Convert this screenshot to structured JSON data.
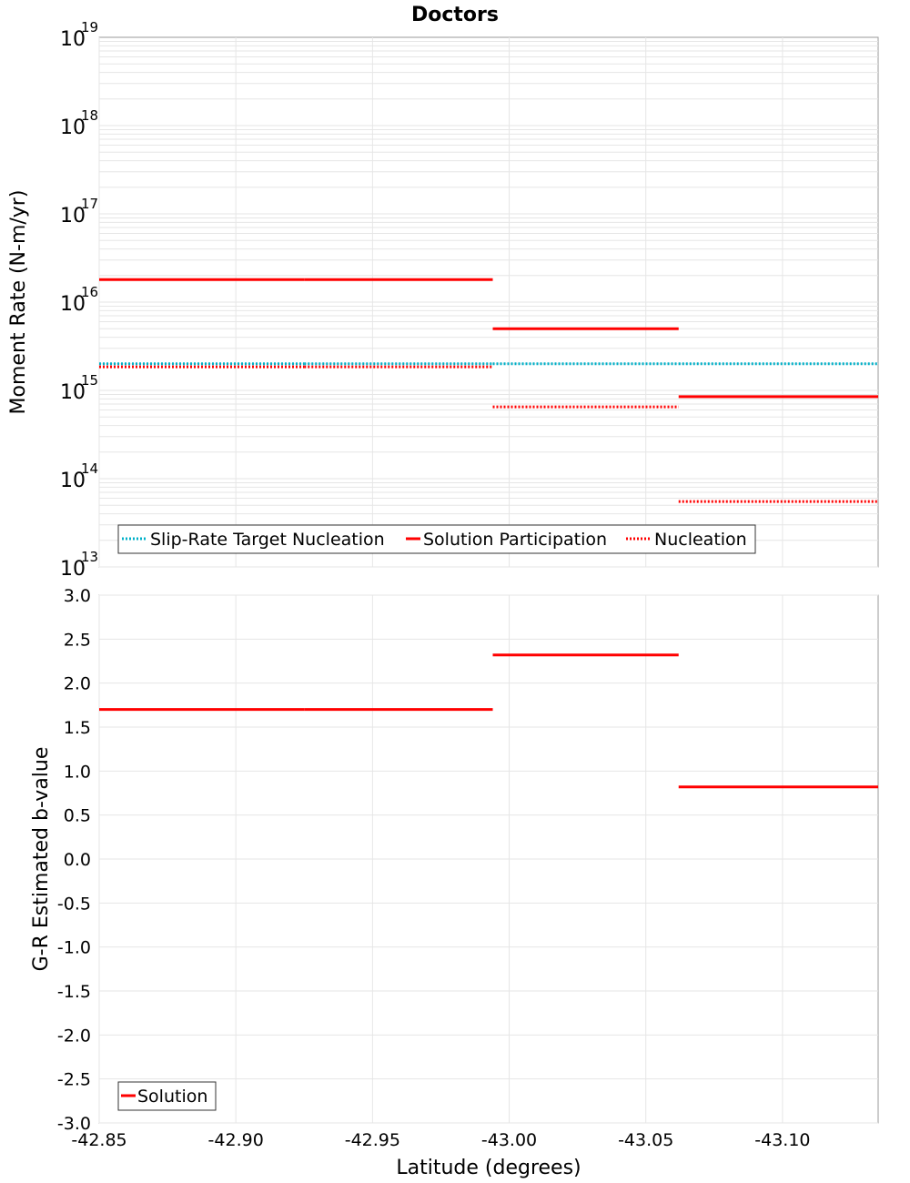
{
  "chart_data": [
    {
      "type": "line",
      "title": "Doctors",
      "xlabel": "Latitude (degrees)",
      "ylabel": "Moment Rate (N-m/yr)",
      "yscale": "log",
      "ylim": [
        10000000000000.0,
        1e+19
      ],
      "xlim": [
        -42.85,
        -43.135
      ],
      "x_ticks": [
        -42.85,
        -42.9,
        -42.95,
        -43.0,
        -43.05,
        -43.1
      ],
      "x_tick_labels": [
        "-42.85",
        "-42.90",
        "-42.95",
        "-43.00",
        "-43.05",
        "-43.10"
      ],
      "y_ticks": [
        {
          "base": "10",
          "exp": "13",
          "value": 10000000000000.0
        },
        {
          "base": "10",
          "exp": "14",
          "value": 100000000000000.0
        },
        {
          "base": "10",
          "exp": "15",
          "value": 1000000000000000.0
        },
        {
          "base": "10",
          "exp": "16",
          "value": 1e+16
        },
        {
          "base": "10",
          "exp": "17",
          "value": 1e+17
        },
        {
          "base": "10",
          "exp": "18",
          "value": 1e+18
        },
        {
          "base": "10",
          "exp": "19",
          "value": 1e+19
        }
      ],
      "grid": true,
      "legend_position": "bottom-left",
      "series": [
        {
          "name": "Slip-Rate Target Nucleation",
          "color": "#00b0c8",
          "style": "dotted",
          "segments": [
            {
              "x0": -42.85,
              "x1": -42.925,
              "y": 2000000000000000.0
            },
            {
              "x0": -42.925,
              "x1": -42.994,
              "y": 2000000000000000.0
            },
            {
              "x0": -42.994,
              "x1": -43.062,
              "y": 2000000000000000.0
            },
            {
              "x0": -43.062,
              "x1": -43.135,
              "y": 2000000000000000.0
            }
          ]
        },
        {
          "name": "Solution Participation",
          "color": "#ff0000",
          "style": "solid",
          "segments": [
            {
              "x0": -42.85,
              "x1": -42.925,
              "y": 1.8e+16
            },
            {
              "x0": -42.925,
              "x1": -42.994,
              "y": 1.8e+16
            },
            {
              "x0": -42.994,
              "x1": -43.062,
              "y": 5000000000000000.0
            },
            {
              "x0": -43.062,
              "x1": -43.135,
              "y": 850000000000000.0
            }
          ]
        },
        {
          "name": "Nucleation",
          "color": "#ff0000",
          "style": "dotted",
          "segments": [
            {
              "x0": -42.85,
              "x1": -42.925,
              "y": 1850000000000000.0
            },
            {
              "x0": -42.925,
              "x1": -42.994,
              "y": 1850000000000000.0
            },
            {
              "x0": -42.994,
              "x1": -43.062,
              "y": 650000000000000.0
            },
            {
              "x0": -43.062,
              "x1": -43.135,
              "y": 55000000000000.0
            }
          ]
        }
      ]
    },
    {
      "type": "line",
      "title": "",
      "xlabel": "Latitude (degrees)",
      "ylabel": "G-R Estimated b-value",
      "ylim": [
        -3.0,
        3.0
      ],
      "xlim": [
        -42.85,
        -43.135
      ],
      "x_ticks": [
        -42.85,
        -42.9,
        -42.95,
        -43.0,
        -43.05,
        -43.1
      ],
      "x_tick_labels": [
        "-42.85",
        "-42.90",
        "-42.95",
        "-43.00",
        "-43.05",
        "-43.10"
      ],
      "y_ticks": [
        3.0,
        2.5,
        2.0,
        1.5,
        1.0,
        0.5,
        0.0,
        -0.5,
        -1.0,
        -1.5,
        -2.0,
        -2.5,
        -3.0
      ],
      "y_tick_labels": [
        "3.0",
        "2.5",
        "2.0",
        "1.5",
        "1.0",
        "0.5",
        "0.0",
        "-0.5",
        "-1.0",
        "-1.5",
        "-2.0",
        "-2.5",
        "-3.0"
      ],
      "grid": true,
      "legend_position": "bottom-left",
      "series": [
        {
          "name": "Solution",
          "color": "#ff0000",
          "style": "solid",
          "segments": [
            {
              "x0": -42.85,
              "x1": -42.925,
              "y": 1.7
            },
            {
              "x0": -42.925,
              "x1": -42.994,
              "y": 1.7
            },
            {
              "x0": -42.994,
              "x1": -43.062,
              "y": 2.32
            },
            {
              "x0": -43.062,
              "x1": -43.135,
              "y": 0.82
            }
          ]
        }
      ]
    }
  ]
}
